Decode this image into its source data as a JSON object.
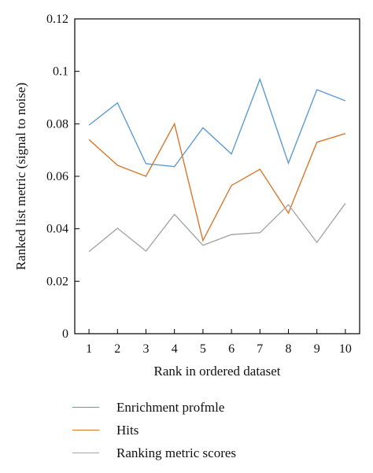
{
  "chart_data": {
    "type": "line",
    "xlabel": "Rank in ordered dataset",
    "ylabel": "Ranked list metric (signal to noise)",
    "x": [
      1,
      2,
      3,
      4,
      5,
      6,
      7,
      8,
      9,
      10
    ],
    "xlim": [
      0.5,
      10.5
    ],
    "ylim": [
      0,
      0.12
    ],
    "yticks": [
      0,
      0.02,
      0.04,
      0.06,
      0.08,
      0.1,
      0.12
    ],
    "ytick_labels": [
      "0",
      "0.02",
      "0.04",
      "0.06",
      "0.08",
      "0.1",
      "0.12"
    ],
    "xtick_labels": [
      "1",
      "2",
      "3",
      "4",
      "5",
      "6",
      "7",
      "8",
      "9",
      "10"
    ],
    "grid": false,
    "legend_position": "below",
    "series": [
      {
        "name": "Enrichment profmle",
        "color": "#5b9bd5",
        "values": [
          0.0795,
          0.088,
          0.0648,
          0.0637,
          0.0785,
          0.0685,
          0.097,
          0.065,
          0.093,
          0.0888
        ]
      },
      {
        "name": "Hits",
        "color": "#d9772b",
        "values": [
          0.074,
          0.0642,
          0.06,
          0.08,
          0.0355,
          0.0565,
          0.0627,
          0.046,
          0.073,
          0.0763
        ]
      },
      {
        "name": "Ranking metric scores",
        "color": "#a6a6a6",
        "values": [
          0.0313,
          0.0402,
          0.0315,
          0.0455,
          0.0337,
          0.0378,
          0.0385,
          0.0492,
          0.0348,
          0.0497
        ]
      }
    ]
  }
}
